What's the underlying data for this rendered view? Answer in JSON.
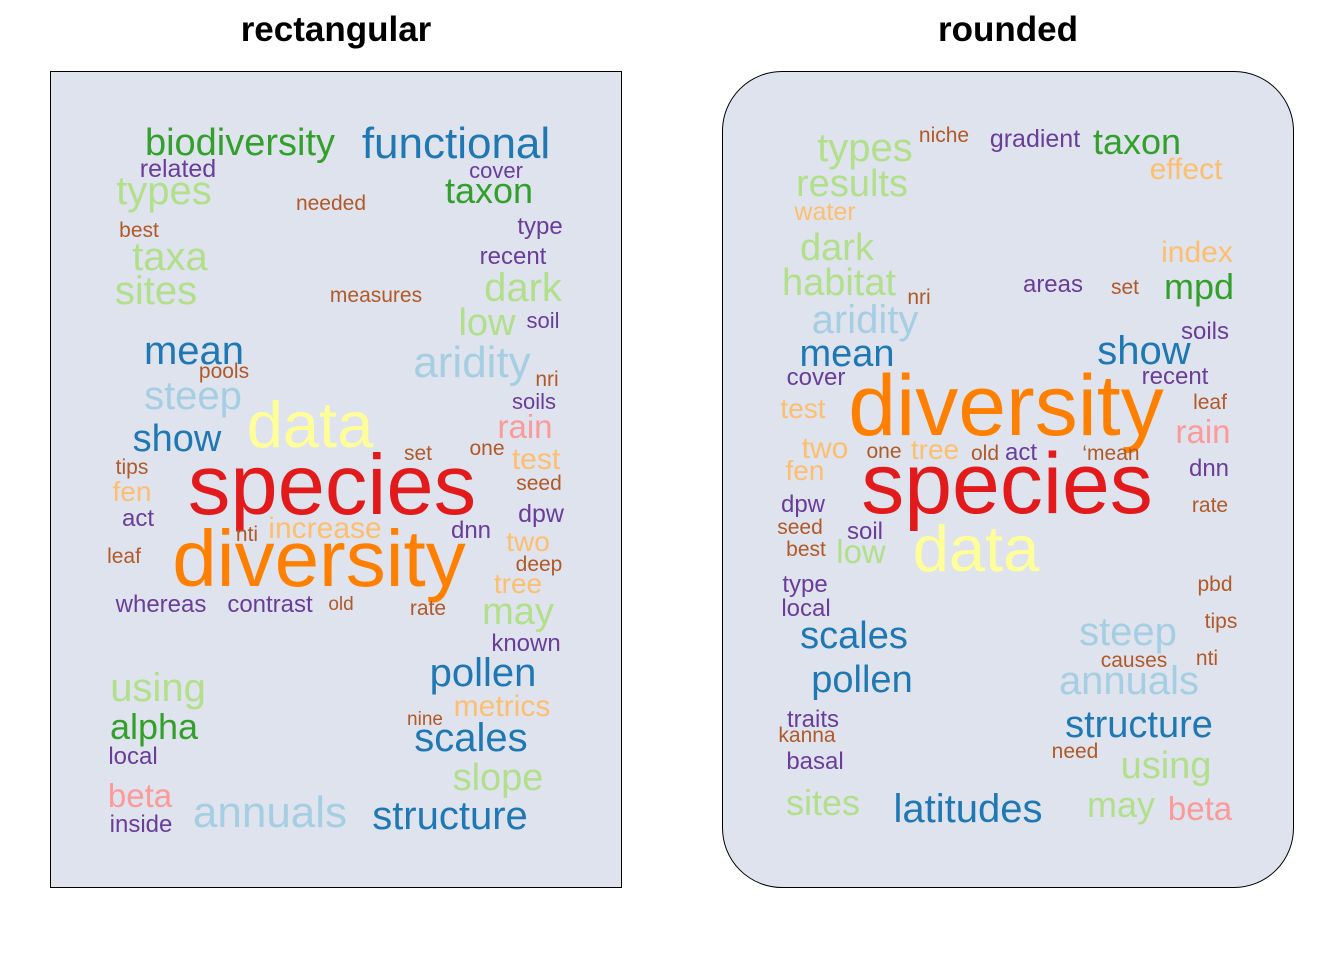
{
  "panels": {
    "left_title": "rectangular",
    "right_title": "rounded"
  },
  "colors": {
    "panel_background": "#dee3ed",
    "palette": [
      "#a6cee3",
      "#1f78b4",
      "#b2df8a",
      "#33a02c",
      "#fb9a99",
      "#e31a1c",
      "#fdbf6f",
      "#ff7f00",
      "#6a3d9a",
      "#ffff99",
      "#b15928"
    ]
  },
  "left_words": [
    {
      "text": "biodiversity",
      "color": "#33a02c"
    },
    {
      "text": "functional",
      "color": "#1f78b4"
    },
    {
      "text": "related",
      "color": "#6a3d9a"
    },
    {
      "text": "cover",
      "color": "#6a3d9a"
    },
    {
      "text": "types",
      "color": "#b2df8a"
    },
    {
      "text": "taxon",
      "color": "#33a02c"
    },
    {
      "text": "needed",
      "color": "#b15928"
    },
    {
      "text": "type",
      "color": "#6a3d9a"
    },
    {
      "text": "best",
      "color": "#b15928"
    },
    {
      "text": "taxa",
      "color": "#b2df8a"
    },
    {
      "text": "recent",
      "color": "#6a3d9a"
    },
    {
      "text": "dark",
      "color": "#b2df8a"
    },
    {
      "text": "sites",
      "color": "#b2df8a"
    },
    {
      "text": "measures",
      "color": "#b15928"
    },
    {
      "text": "low",
      "color": "#b2df8a"
    },
    {
      "text": "soil",
      "color": "#6a3d9a"
    },
    {
      "text": "mean",
      "color": "#1f78b4"
    },
    {
      "text": "aridity",
      "color": "#a6cee3"
    },
    {
      "text": "pools",
      "color": "#b15928"
    },
    {
      "text": "nri",
      "color": "#b15928"
    },
    {
      "text": "steep",
      "color": "#a6cee3"
    },
    {
      "text": "soils",
      "color": "#6a3d9a"
    },
    {
      "text": "data",
      "color": "#ffff99"
    },
    {
      "text": "rain",
      "color": "#fb9a99"
    },
    {
      "text": "show",
      "color": "#1f78b4"
    },
    {
      "text": "one",
      "color": "#b15928"
    },
    {
      "text": "set",
      "color": "#b15928"
    },
    {
      "text": "test",
      "color": "#fdbf6f"
    },
    {
      "text": "tips",
      "color": "#b15928"
    },
    {
      "text": "species",
      "color": "#e31a1c"
    },
    {
      "text": "seed",
      "color": "#b15928"
    },
    {
      "text": "fen",
      "color": "#fdbf6f"
    },
    {
      "text": "dpw",
      "color": "#6a3d9a"
    },
    {
      "text": "act",
      "color": "#6a3d9a"
    },
    {
      "text": "nti",
      "color": "#b15928"
    },
    {
      "text": "increase",
      "color": "#fdbf6f"
    },
    {
      "text": "dnn",
      "color": "#6a3d9a"
    },
    {
      "text": "two",
      "color": "#fdbf6f"
    },
    {
      "text": "leaf",
      "color": "#b15928"
    },
    {
      "text": "diversity",
      "color": "#ff7f00"
    },
    {
      "text": "deep",
      "color": "#b15928"
    },
    {
      "text": "tree",
      "color": "#fdbf6f"
    },
    {
      "text": "whereas",
      "color": "#6a3d9a"
    },
    {
      "text": "contrast",
      "color": "#6a3d9a"
    },
    {
      "text": "old",
      "color": "#b15928"
    },
    {
      "text": "rate",
      "color": "#b15928"
    },
    {
      "text": "may",
      "color": "#b2df8a"
    },
    {
      "text": "known",
      "color": "#6a3d9a"
    },
    {
      "text": "pollen",
      "color": "#1f78b4"
    },
    {
      "text": "using",
      "color": "#b2df8a"
    },
    {
      "text": "metrics",
      "color": "#fdbf6f"
    },
    {
      "text": "nine",
      "color": "#b15928"
    },
    {
      "text": "alpha",
      "color": "#33a02c"
    },
    {
      "text": "scales",
      "color": "#1f78b4"
    },
    {
      "text": "local",
      "color": "#6a3d9a"
    },
    {
      "text": "slope",
      "color": "#b2df8a"
    },
    {
      "text": "beta",
      "color": "#fb9a99"
    },
    {
      "text": "annuals",
      "color": "#a6cee3"
    },
    {
      "text": "structure",
      "color": "#1f78b4"
    },
    {
      "text": "inside",
      "color": "#6a3d9a"
    }
  ],
  "right_words": [
    {
      "text": "niche",
      "color": "#b15928"
    },
    {
      "text": "gradient",
      "color": "#6a3d9a"
    },
    {
      "text": "taxon",
      "color": "#33a02c"
    },
    {
      "text": "types",
      "color": "#b2df8a"
    },
    {
      "text": "effect",
      "color": "#fdbf6f"
    },
    {
      "text": "results",
      "color": "#b2df8a"
    },
    {
      "text": "water",
      "color": "#fdbf6f"
    },
    {
      "text": "dark",
      "color": "#b2df8a"
    },
    {
      "text": "index",
      "color": "#fdbf6f"
    },
    {
      "text": "habitat",
      "color": "#b2df8a"
    },
    {
      "text": "areas",
      "color": "#6a3d9a"
    },
    {
      "text": "set",
      "color": "#b15928"
    },
    {
      "text": "mpd",
      "color": "#33a02c"
    },
    {
      "text": "nri",
      "color": "#b15928"
    },
    {
      "text": "aridity",
      "color": "#a6cee3"
    },
    {
      "text": "soils",
      "color": "#6a3d9a"
    },
    {
      "text": "mean",
      "color": "#1f78b4"
    },
    {
      "text": "show",
      "color": "#1f78b4"
    },
    {
      "text": "cover",
      "color": "#6a3d9a"
    },
    {
      "text": "recent",
      "color": "#6a3d9a"
    },
    {
      "text": "diversity",
      "color": "#ff7f00"
    },
    {
      "text": "test",
      "color": "#fdbf6f"
    },
    {
      "text": "leaf",
      "color": "#b15928"
    },
    {
      "text": "rain",
      "color": "#fb9a99"
    },
    {
      "text": "two",
      "color": "#fdbf6f"
    },
    {
      "text": "one",
      "color": "#b15928"
    },
    {
      "text": "tree",
      "color": "#fdbf6f"
    },
    {
      "text": "old",
      "color": "#b15928"
    },
    {
      "text": "act",
      "color": "#6a3d9a"
    },
    {
      "text": "‘mean",
      "color": "#b15928"
    },
    {
      "text": "fen",
      "color": "#fdbf6f"
    },
    {
      "text": "species",
      "color": "#e31a1c"
    },
    {
      "text": "dnn",
      "color": "#6a3d9a"
    },
    {
      "text": "dpw",
      "color": "#6a3d9a"
    },
    {
      "text": "rate",
      "color": "#b15928"
    },
    {
      "text": "seed",
      "color": "#b15928"
    },
    {
      "text": "soil",
      "color": "#6a3d9a"
    },
    {
      "text": "best",
      "color": "#b15928"
    },
    {
      "text": "low",
      "color": "#b2df8a"
    },
    {
      "text": "data",
      "color": "#ffff99"
    },
    {
      "text": "type",
      "color": "#6a3d9a"
    },
    {
      "text": "pbd",
      "color": "#b15928"
    },
    {
      "text": "local",
      "color": "#6a3d9a"
    },
    {
      "text": "tips",
      "color": "#b15928"
    },
    {
      "text": "scales",
      "color": "#1f78b4"
    },
    {
      "text": "steep",
      "color": "#a6cee3"
    },
    {
      "text": "causes",
      "color": "#b15928"
    },
    {
      "text": "nti",
      "color": "#b15928"
    },
    {
      "text": "pollen",
      "color": "#1f78b4"
    },
    {
      "text": "annuals",
      "color": "#a6cee3"
    },
    {
      "text": "traits",
      "color": "#6a3d9a"
    },
    {
      "text": "structure",
      "color": "#1f78b4"
    },
    {
      "text": "kanna",
      "color": "#b15928"
    },
    {
      "text": "need",
      "color": "#b15928"
    },
    {
      "text": "basal",
      "color": "#6a3d9a"
    },
    {
      "text": "using",
      "color": "#b2df8a"
    },
    {
      "text": "sites",
      "color": "#b2df8a"
    },
    {
      "text": "latitudes",
      "color": "#1f78b4"
    },
    {
      "text": "may",
      "color": "#b2df8a"
    },
    {
      "text": "beta",
      "color": "#fb9a99"
    }
  ]
}
